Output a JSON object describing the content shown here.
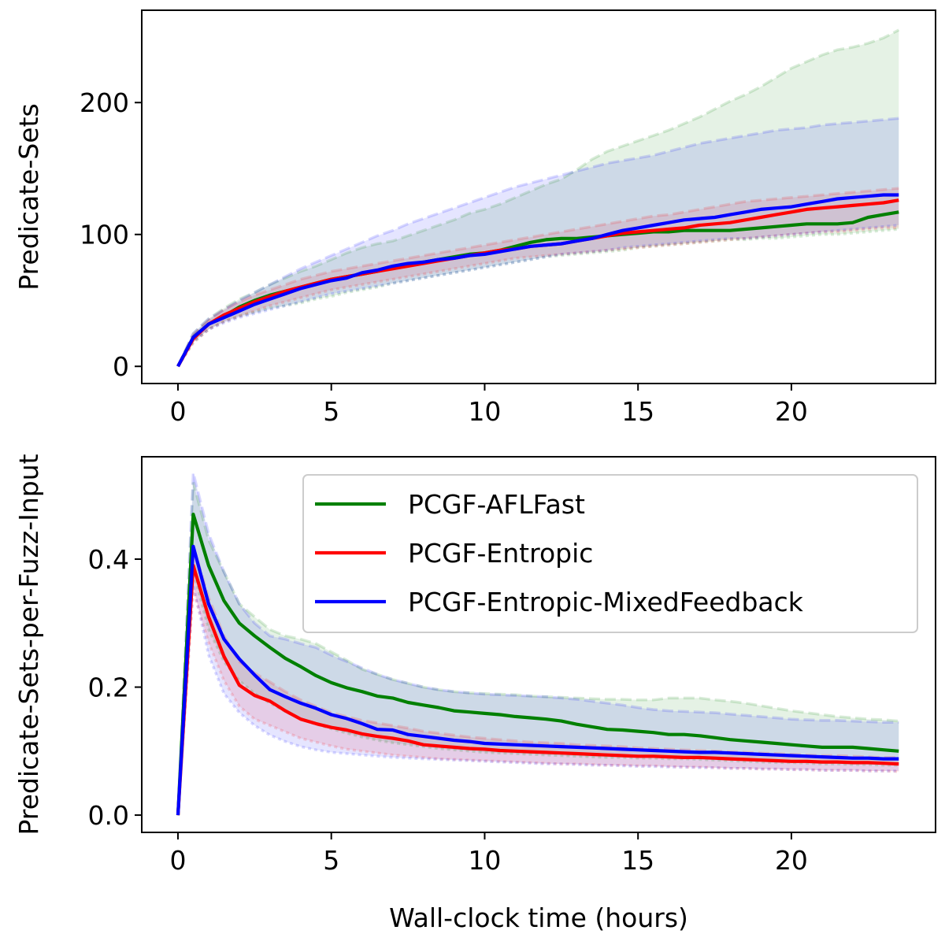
{
  "chart_data": [
    {
      "type": "line",
      "xlabel": "",
      "ylabel": "Predicate-Sets",
      "xlim": [
        -1.18,
        24.7
      ],
      "ylim": [
        -13,
        270
      ],
      "xticks": [
        0,
        5,
        10,
        15,
        20
      ],
      "yticks": [
        0,
        100,
        200
      ],
      "grid": false,
      "legend": null,
      "x": [
        0,
        0.5,
        1,
        1.5,
        2,
        2.5,
        3,
        3.5,
        4,
        4.5,
        5,
        5.5,
        6,
        6.5,
        7,
        7.5,
        8,
        8.5,
        9,
        9.5,
        10,
        10.5,
        11,
        11.5,
        12,
        12.5,
        13,
        13.5,
        14,
        14.5,
        15,
        15.5,
        16,
        16.5,
        17,
        17.5,
        18,
        18.5,
        19,
        19.5,
        20,
        20.5,
        21,
        21.5,
        22,
        22.5,
        23,
        23.5
      ],
      "series": [
        {
          "name": "PCGF-AFLFast",
          "color": "#008000",
          "values": [
            0,
            22,
            32,
            38,
            45,
            50,
            54,
            57,
            60,
            63,
            66,
            68,
            70,
            72,
            75,
            77,
            79,
            81,
            83,
            85,
            86,
            88,
            91,
            94,
            96,
            97,
            97,
            98,
            99,
            100,
            101,
            102,
            102,
            103,
            103,
            103,
            103,
            104,
            105,
            106,
            107,
            108,
            108,
            108,
            109,
            113,
            115,
            117
          ],
          "upper": [
            0,
            25,
            36,
            44,
            51,
            56,
            62,
            67,
            72,
            76,
            81,
            86,
            90,
            93,
            95,
            99,
            103,
            107,
            111,
            116,
            119,
            123,
            128,
            133,
            138,
            142,
            149,
            157,
            163,
            167,
            171,
            175,
            179,
            184,
            189,
            195,
            201,
            206,
            212,
            219,
            226,
            231,
            236,
            240,
            242,
            245,
            249,
            255
          ],
          "lower": [
            0,
            18,
            28,
            34,
            38,
            41,
            44,
            46,
            48,
            51,
            53,
            56,
            58,
            60,
            63,
            65,
            67,
            69,
            71,
            73,
            75,
            77,
            79,
            81,
            83,
            84,
            85,
            86,
            87,
            88,
            90,
            91,
            92,
            93,
            94,
            95,
            96,
            96,
            97,
            97,
            98,
            99,
            100,
            100,
            101,
            102,
            103,
            104
          ]
        },
        {
          "name": "PCGF-Entropic",
          "color": "#ff0000",
          "values": [
            0,
            21,
            32,
            39,
            44,
            49,
            53,
            57,
            60,
            63,
            66,
            68,
            70,
            72,
            74,
            76,
            78,
            80,
            82,
            84,
            86,
            88,
            89,
            91,
            92,
            93,
            95,
            97,
            99,
            101,
            102,
            103,
            104,
            105,
            107,
            108,
            109,
            111,
            113,
            115,
            117,
            119,
            120,
            121,
            122,
            123,
            124,
            126
          ],
          "upper": [
            0,
            24,
            35,
            43,
            49,
            54,
            58,
            62,
            66,
            69,
            72,
            74,
            76,
            78,
            80,
            82,
            84,
            86,
            88,
            90,
            92,
            94,
            96,
            98,
            100,
            102,
            104,
            106,
            108,
            110,
            112,
            114,
            115,
            117,
            119,
            121,
            123,
            125,
            126,
            127,
            128,
            129,
            130,
            131,
            132,
            133,
            134,
            135
          ],
          "lower": [
            0,
            18,
            28,
            34,
            38,
            42,
            46,
            49,
            52,
            55,
            58,
            60,
            62,
            64,
            66,
            68,
            70,
            72,
            74,
            76,
            78,
            80,
            82,
            83,
            84,
            85,
            86,
            87,
            88,
            89,
            90,
            91,
            92,
            93,
            94,
            95,
            96,
            97,
            98,
            99,
            100,
            101,
            102,
            102,
            103,
            104,
            105,
            105
          ]
        },
        {
          "name": "PCGF-Entropic-MixedFeedback",
          "color": "#0000ff",
          "values": [
            0,
            22,
            32,
            37,
            42,
            47,
            51,
            55,
            59,
            62,
            65,
            67,
            71,
            73,
            76,
            78,
            79,
            81,
            82,
            84,
            85,
            87,
            89,
            91,
            92,
            93,
            95,
            97,
            100,
            103,
            105,
            107,
            109,
            111,
            112,
            113,
            115,
            117,
            119,
            120,
            121,
            123,
            125,
            127,
            128,
            129,
            130,
            130
          ],
          "upper": [
            0,
            25,
            36,
            43,
            50,
            56,
            62,
            68,
            74,
            79,
            84,
            89,
            94,
            99,
            103,
            108,
            112,
            116,
            120,
            124,
            128,
            132,
            136,
            139,
            142,
            145,
            148,
            151,
            154,
            156,
            158,
            160,
            163,
            166,
            169,
            171,
            173,
            175,
            177,
            179,
            180,
            181,
            183,
            184,
            185,
            186,
            187,
            188
          ],
          "lower": [
            0,
            19,
            28,
            33,
            37,
            40,
            43,
            46,
            49,
            52,
            55,
            57,
            59,
            61,
            63,
            65,
            67,
            69,
            71,
            73,
            75,
            77,
            79,
            81,
            83,
            85,
            86,
            87,
            88,
            90,
            91,
            92,
            93,
            94,
            95,
            96,
            97,
            97,
            98,
            99,
            100,
            101,
            102,
            103,
            104,
            105,
            106,
            107
          ]
        }
      ]
    },
    {
      "type": "line",
      "xlabel": "Wall-clock time (hours)",
      "ylabel": "Predicate-Sets-per-Fuzz-Input",
      "xlim": [
        -1.18,
        24.7
      ],
      "ylim": [
        -0.027,
        0.56
      ],
      "xticks": [
        0,
        5,
        10,
        15,
        20
      ],
      "yticks": [
        0.0,
        0.2,
        0.4
      ],
      "ytick_labels": [
        "0.0",
        "0.2",
        "0.4"
      ],
      "grid": false,
      "legend": "top-right",
      "x": [
        0,
        0.5,
        1,
        1.5,
        2,
        2.5,
        3,
        3.5,
        4,
        4.5,
        5,
        5.5,
        6,
        6.5,
        7,
        7.5,
        8,
        8.5,
        9,
        9.5,
        10,
        10.5,
        11,
        11.5,
        12,
        12.5,
        13,
        13.5,
        14,
        14.5,
        15,
        15.5,
        16,
        16.5,
        17,
        17.5,
        18,
        18.5,
        19,
        19.5,
        20,
        20.5,
        21,
        21.5,
        22,
        22.5,
        23,
        23.5
      ],
      "series": [
        {
          "name": "PCGF-AFLFast",
          "color": "#008000",
          "values": [
            0,
            0.47,
            0.39,
            0.335,
            0.3,
            0.28,
            0.262,
            0.245,
            0.232,
            0.218,
            0.207,
            0.199,
            0.193,
            0.186,
            0.183,
            0.176,
            0.172,
            0.168,
            0.163,
            0.161,
            0.159,
            0.157,
            0.154,
            0.152,
            0.15,
            0.147,
            0.142,
            0.138,
            0.134,
            0.133,
            0.131,
            0.129,
            0.126,
            0.126,
            0.124,
            0.121,
            0.118,
            0.116,
            0.114,
            0.112,
            0.11,
            0.108,
            0.106,
            0.106,
            0.106,
            0.104,
            0.102,
            0.1
          ],
          "upper": [
            0,
            0.52,
            0.43,
            0.38,
            0.33,
            0.31,
            0.29,
            0.28,
            0.275,
            0.268,
            0.255,
            0.242,
            0.228,
            0.22,
            0.212,
            0.206,
            0.2,
            0.196,
            0.193,
            0.191,
            0.19,
            0.189,
            0.188,
            0.186,
            0.185,
            0.184,
            0.183,
            0.182,
            0.181,
            0.181,
            0.18,
            0.18,
            0.183,
            0.183,
            0.183,
            0.18,
            0.178,
            0.175,
            0.171,
            0.167,
            0.163,
            0.16,
            0.157,
            0.154,
            0.152,
            0.15,
            0.149,
            0.147
          ],
          "lower": [
            0,
            0.38,
            0.29,
            0.24,
            0.21,
            0.19,
            0.175,
            0.162,
            0.15,
            0.142,
            0.135,
            0.128,
            0.122,
            0.117,
            0.113,
            0.11,
            0.107,
            0.104,
            0.102,
            0.1,
            0.098,
            0.097,
            0.096,
            0.095,
            0.094,
            0.093,
            0.092,
            0.091,
            0.09,
            0.09,
            0.089,
            0.089,
            0.088,
            0.088,
            0.087,
            0.086,
            0.085,
            0.084,
            0.083,
            0.082,
            0.082,
            0.081,
            0.08,
            0.08,
            0.079,
            0.079,
            0.078,
            0.078
          ]
        },
        {
          "name": "PCGF-Entropic",
          "color": "#ff0000",
          "values": [
            0,
            0.39,
            0.31,
            0.248,
            0.203,
            0.187,
            0.178,
            0.163,
            0.15,
            0.143,
            0.137,
            0.133,
            0.127,
            0.123,
            0.12,
            0.116,
            0.11,
            0.108,
            0.106,
            0.104,
            0.103,
            0.101,
            0.1,
            0.099,
            0.098,
            0.097,
            0.096,
            0.095,
            0.094,
            0.093,
            0.092,
            0.092,
            0.091,
            0.09,
            0.09,
            0.089,
            0.088,
            0.087,
            0.086,
            0.085,
            0.084,
            0.084,
            0.083,
            0.083,
            0.082,
            0.082,
            0.081,
            0.08
          ],
          "upper": [
            0,
            0.42,
            0.34,
            0.28,
            0.24,
            0.222,
            0.208,
            0.193,
            0.18,
            0.17,
            0.16,
            0.154,
            0.148,
            0.144,
            0.14,
            0.136,
            0.131,
            0.128,
            0.125,
            0.122,
            0.12,
            0.118,
            0.116,
            0.114,
            0.113,
            0.112,
            0.11,
            0.109,
            0.108,
            0.107,
            0.105,
            0.104,
            0.103,
            0.102,
            0.101,
            0.1,
            0.099,
            0.098,
            0.097,
            0.096,
            0.095,
            0.094,
            0.093,
            0.093,
            0.092,
            0.091,
            0.09,
            0.09
          ],
          "lower": [
            0,
            0.35,
            0.27,
            0.21,
            0.17,
            0.15,
            0.14,
            0.13,
            0.12,
            0.114,
            0.108,
            0.103,
            0.1,
            0.097,
            0.094,
            0.092,
            0.09,
            0.088,
            0.087,
            0.086,
            0.085,
            0.084,
            0.083,
            0.082,
            0.081,
            0.08,
            0.08,
            0.079,
            0.078,
            0.078,
            0.077,
            0.077,
            0.076,
            0.075,
            0.075,
            0.074,
            0.073,
            0.073,
            0.072,
            0.072,
            0.071,
            0.071,
            0.07,
            0.07,
            0.07,
            0.069,
            0.069,
            0.068
          ]
        },
        {
          "name": "PCGF-Entropic-MixedFeedback",
          "color": "#0000ff",
          "values": [
            0,
            0.42,
            0.33,
            0.275,
            0.244,
            0.219,
            0.196,
            0.185,
            0.175,
            0.167,
            0.157,
            0.151,
            0.143,
            0.134,
            0.133,
            0.126,
            0.123,
            0.12,
            0.117,
            0.115,
            0.112,
            0.111,
            0.11,
            0.109,
            0.108,
            0.107,
            0.106,
            0.105,
            0.104,
            0.103,
            0.102,
            0.101,
            0.1,
            0.099,
            0.098,
            0.098,
            0.097,
            0.096,
            0.095,
            0.094,
            0.093,
            0.092,
            0.091,
            0.09,
            0.089,
            0.089,
            0.088,
            0.088
          ],
          "upper": [
            0,
            0.535,
            0.44,
            0.38,
            0.33,
            0.3,
            0.28,
            0.275,
            0.268,
            0.262,
            0.25,
            0.24,
            0.23,
            0.22,
            0.212,
            0.206,
            0.2,
            0.196,
            0.193,
            0.191,
            0.189,
            0.188,
            0.187,
            0.186,
            0.185,
            0.183,
            0.181,
            0.178,
            0.175,
            0.172,
            0.168,
            0.165,
            0.163,
            0.162,
            0.161,
            0.16,
            0.158,
            0.156,
            0.154,
            0.152,
            0.15,
            0.149,
            0.148,
            0.148,
            0.147,
            0.146,
            0.145,
            0.145
          ],
          "lower": [
            0,
            0.36,
            0.25,
            0.19,
            0.16,
            0.14,
            0.125,
            0.115,
            0.107,
            0.102,
            0.098,
            0.096,
            0.094,
            0.092,
            0.09,
            0.089,
            0.088,
            0.087,
            0.086,
            0.085,
            0.084,
            0.083,
            0.082,
            0.081,
            0.08,
            0.08,
            0.079,
            0.078,
            0.078,
            0.077,
            0.076,
            0.076,
            0.075,
            0.075,
            0.074,
            0.074,
            0.073,
            0.073,
            0.072,
            0.072,
            0.071,
            0.071,
            0.07,
            0.07,
            0.07,
            0.069,
            0.069,
            0.069
          ]
        }
      ]
    }
  ]
}
